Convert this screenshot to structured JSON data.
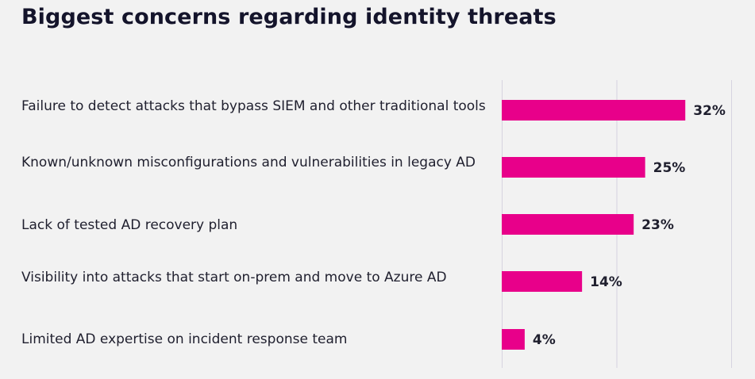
{
  "chart_data": {
    "type": "bar",
    "orientation": "horizontal",
    "title": "Biggest concerns regarding identity threats",
    "categories": [
      "Failure to detect attacks that bypass SIEM and other traditional tools",
      "Known/unknown misconfigurations and vulnerabilities in legacy AD",
      "Lack of tested AD recovery plan",
      "Visibility into attacks that start on-prem and move to Azure AD",
      "Limited AD expertise on incident response team"
    ],
    "values": [
      32,
      25,
      23,
      14,
      4
    ],
    "value_labels": [
      "32%",
      "25%",
      "23%",
      "14%",
      "4%"
    ],
    "xlim": [
      0,
      40
    ],
    "grid": true,
    "bar_color": "#e8008a",
    "grid_color": "#d6d3e0"
  }
}
